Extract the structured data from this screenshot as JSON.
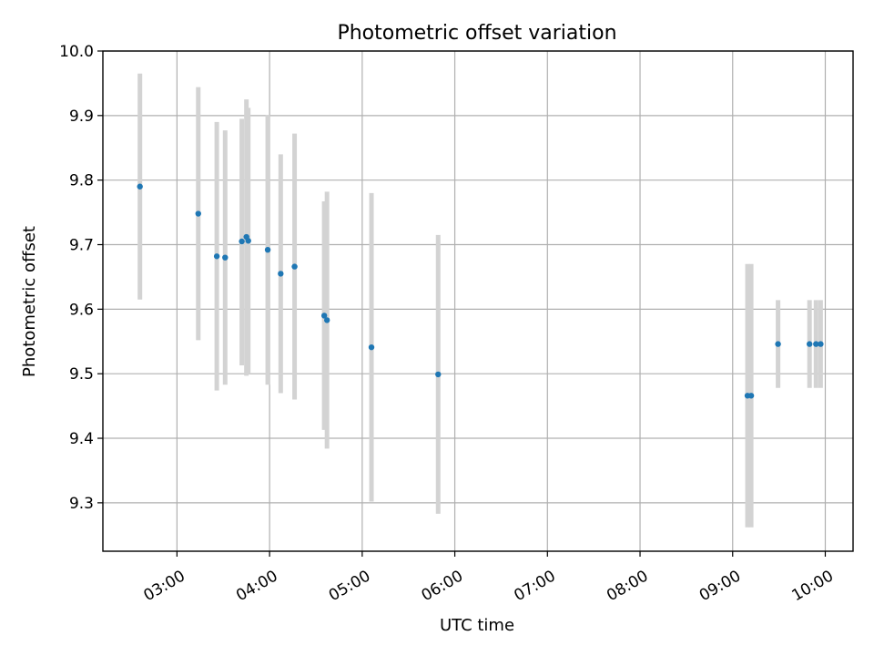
{
  "chart_data": {
    "type": "scatter",
    "title": "Photometric offset variation",
    "xlabel": "UTC time",
    "ylabel": "Photometric offset",
    "grid": true,
    "x_axis": {
      "unit": "UTC time (hours)",
      "range": [
        2.2,
        10.3
      ],
      "ticks": [
        3,
        4,
        5,
        6,
        7,
        8,
        9,
        10
      ],
      "tick_labels": [
        "03:00",
        "04:00",
        "05:00",
        "06:00",
        "07:00",
        "08:00",
        "09:00",
        "10:00"
      ]
    },
    "y_axis": {
      "range": [
        9.225,
        10.0
      ],
      "ticks": [
        9.3,
        9.4,
        9.5,
        9.6,
        9.7,
        9.8,
        9.9,
        10.0
      ],
      "tick_labels": [
        "9.3",
        "9.4",
        "9.5",
        "9.6",
        "9.7",
        "9.8",
        "9.9",
        "10.0"
      ]
    },
    "colors": {
      "point": "#1f77b4",
      "errorbar": "#d3d3d3"
    },
    "points": [
      {
        "x": 2.6,
        "y": 9.79,
        "yerr_low": 9.615,
        "yerr_high": 9.965
      },
      {
        "x": 3.23,
        "y": 9.748,
        "yerr_low": 9.552,
        "yerr_high": 9.944
      },
      {
        "x": 3.43,
        "y": 9.682,
        "yerr_low": 9.474,
        "yerr_high": 9.89
      },
      {
        "x": 3.52,
        "y": 9.68,
        "yerr_low": 9.483,
        "yerr_high": 9.877
      },
      {
        "x": 3.7,
        "y": 9.705,
        "yerr_low": 9.513,
        "yerr_high": 9.895
      },
      {
        "x": 3.75,
        "y": 9.712,
        "yerr_low": 9.497,
        "yerr_high": 9.925
      },
      {
        "x": 3.77,
        "y": 9.706,
        "yerr_low": 9.5,
        "yerr_high": 9.912
      },
      {
        "x": 3.98,
        "y": 9.692,
        "yerr_low": 9.483,
        "yerr_high": 9.901
      },
      {
        "x": 4.12,
        "y": 9.655,
        "yerr_low": 9.47,
        "yerr_high": 9.84
      },
      {
        "x": 4.27,
        "y": 9.666,
        "yerr_low": 9.46,
        "yerr_high": 9.872
      },
      {
        "x": 4.59,
        "y": 9.59,
        "yerr_low": 9.413,
        "yerr_high": 9.767
      },
      {
        "x": 4.62,
        "y": 9.583,
        "yerr_low": 9.384,
        "yerr_high": 9.782
      },
      {
        "x": 5.1,
        "y": 9.541,
        "yerr_low": 9.302,
        "yerr_high": 9.78
      },
      {
        "x": 5.82,
        "y": 9.499,
        "yerr_low": 9.283,
        "yerr_high": 9.715
      },
      {
        "x": 9.16,
        "y": 9.466,
        "yerr_low": 9.262,
        "yerr_high": 9.67
      },
      {
        "x": 9.2,
        "y": 9.466,
        "yerr_low": 9.262,
        "yerr_high": 9.67
      },
      {
        "x": 9.49,
        "y": 9.546,
        "yerr_low": 9.478,
        "yerr_high": 9.614
      },
      {
        "x": 9.83,
        "y": 9.546,
        "yerr_low": 9.478,
        "yerr_high": 9.614
      },
      {
        "x": 9.9,
        "y": 9.546,
        "yerr_low": 9.478,
        "yerr_high": 9.614
      },
      {
        "x": 9.95,
        "y": 9.546,
        "yerr_low": 9.478,
        "yerr_high": 9.614
      }
    ]
  }
}
